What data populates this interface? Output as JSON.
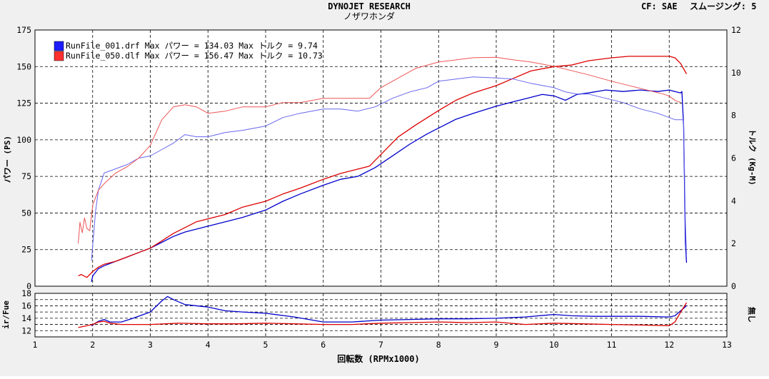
{
  "header": {
    "title": "DYNOJET  RESEARCH",
    "subtitle": "ノザワホンダ",
    "cf_label": "CF: SAE",
    "smoothing_label": "スムージング: 5"
  },
  "chart_data": [
    {
      "type": "line",
      "xlabel": "回転数 (RPMx1000)",
      "ylabel": "パワー (PS)",
      "y2label": "トルク (Kg-M)",
      "xlim": [
        1,
        13
      ],
      "ylim": [
        0,
        175
      ],
      "y2lim": [
        0,
        12
      ],
      "xticks": [
        1,
        2,
        3,
        4,
        5,
        6,
        7,
        8,
        9,
        10,
        11,
        12,
        13
      ],
      "yticks": [
        0,
        25,
        50,
        75,
        100,
        125,
        150,
        175
      ],
      "y2ticks": [
        0,
        2,
        4,
        6,
        8,
        10,
        12
      ],
      "grid": true,
      "legend_position": "top-left",
      "legend": [
        {
          "label": "RunFile_001.drf Max パワー = 134.03   Max トルク = 9.74",
          "color": "#0000ff"
        },
        {
          "label": "RunFile_050.dlf Max パワー = 156.47   Max トルク = 10.73",
          "color": "#ff0000"
        }
      ],
      "series": [
        {
          "name": "RunFile_001.drf パワー",
          "axis": "power",
          "color": "#0000cc",
          "x": [
            1.98,
            2.0,
            2.1,
            2.2,
            2.4,
            2.6,
            2.8,
            3.0,
            3.2,
            3.4,
            3.6,
            3.8,
            4.0,
            4.3,
            4.6,
            5.0,
            5.3,
            5.6,
            6.0,
            6.3,
            6.6,
            6.9,
            7.2,
            7.5,
            7.8,
            8.0,
            8.3,
            8.6,
            9.0,
            9.3,
            9.6,
            9.8,
            10.0,
            10.2,
            10.4,
            10.6,
            10.9,
            11.2,
            11.5,
            11.8,
            12.0,
            12.1,
            12.2,
            12.22,
            12.25,
            12.28,
            12.3
          ],
          "y": [
            3,
            7,
            12,
            14,
            17,
            20,
            23,
            26,
            30,
            34,
            37,
            39,
            41,
            44,
            47,
            52,
            58,
            63,
            69,
            73,
            75,
            81,
            89,
            97,
            104,
            108,
            114,
            118,
            123,
            126,
            129,
            131,
            130,
            127,
            131,
            132,
            134,
            133,
            134,
            133,
            134,
            133,
            132,
            133,
            110,
            30,
            16
          ]
        },
        {
          "name": "RunFile_050.dlf パワー",
          "axis": "power",
          "color": "#dd0000",
          "x": [
            1.75,
            1.8,
            1.9,
            2.0,
            2.1,
            2.2,
            2.4,
            2.6,
            2.8,
            3.0,
            3.2,
            3.4,
            3.6,
            3.8,
            4.0,
            4.3,
            4.6,
            5.0,
            5.3,
            5.6,
            6.0,
            6.3,
            6.6,
            6.8,
            7.0,
            7.3,
            7.6,
            8.0,
            8.3,
            8.6,
            9.0,
            9.3,
            9.6,
            10.0,
            10.3,
            10.6,
            11.0,
            11.3,
            11.6,
            11.9,
            12.0,
            12.1,
            12.2,
            12.3
          ],
          "y": [
            7,
            8,
            6,
            10,
            13,
            15,
            17,
            20,
            23,
            26,
            31,
            36,
            40,
            44,
            46,
            49,
            54,
            58,
            63,
            67,
            73,
            77,
            80,
            82,
            90,
            102,
            110,
            120,
            127,
            132,
            137,
            142,
            147,
            150,
            151,
            154,
            156,
            157,
            157,
            157,
            157,
            156,
            152,
            145
          ]
        },
        {
          "name": "RunFile_001.drf トルク",
          "axis": "torque",
          "color": "#6666ee",
          "x": [
            1.98,
            2.05,
            2.1,
            2.2,
            2.4,
            2.6,
            2.8,
            3.0,
            3.2,
            3.4,
            3.6,
            3.8,
            4.0,
            4.3,
            4.6,
            5.0,
            5.3,
            5.6,
            6.0,
            6.3,
            6.6,
            6.9,
            7.2,
            7.5,
            7.8,
            8.0,
            8.3,
            8.6,
            9.0,
            9.3,
            9.6,
            9.8,
            10.0,
            10.2,
            10.4,
            10.6,
            10.9,
            11.2,
            11.5,
            11.8,
            12.0,
            12.1,
            12.2,
            12.25,
            12.28,
            12.3
          ],
          "y": [
            1.2,
            3.5,
            4.5,
            5.3,
            5.5,
            5.7,
            6.0,
            6.1,
            6.4,
            6.7,
            7.1,
            7.0,
            7.0,
            7.2,
            7.3,
            7.5,
            7.9,
            8.1,
            8.3,
            8.3,
            8.2,
            8.4,
            8.8,
            9.1,
            9.3,
            9.6,
            9.7,
            9.8,
            9.75,
            9.7,
            9.5,
            9.4,
            9.3,
            9.1,
            9.0,
            9.0,
            8.8,
            8.6,
            8.3,
            8.1,
            7.9,
            7.8,
            7.8,
            7.8,
            3.0,
            1.4
          ]
        },
        {
          "name": "RunFile_050.dlf トルク",
          "axis": "torque",
          "color": "#ee5555",
          "x": [
            1.75,
            1.78,
            1.82,
            1.86,
            1.9,
            1.95,
            2.0,
            2.1,
            2.2,
            2.4,
            2.6,
            2.8,
            3.0,
            3.2,
            3.4,
            3.6,
            3.8,
            4.0,
            4.3,
            4.6,
            5.0,
            5.3,
            5.6,
            6.0,
            6.3,
            6.6,
            6.8,
            7.0,
            7.2,
            7.6,
            8.0,
            8.3,
            8.6,
            9.0,
            9.3,
            9.6,
            10.0,
            10.3,
            10.6,
            11.0,
            11.3,
            11.6,
            11.9,
            12.0,
            12.1,
            12.2
          ],
          "y": [
            2.0,
            3.0,
            2.5,
            3.2,
            2.7,
            2.6,
            3.8,
            4.5,
            4.8,
            5.3,
            5.6,
            6.0,
            6.6,
            7.8,
            8.4,
            8.5,
            8.4,
            8.1,
            8.2,
            8.4,
            8.4,
            8.6,
            8.6,
            8.8,
            8.8,
            8.8,
            8.8,
            9.3,
            9.6,
            10.2,
            10.5,
            10.6,
            10.7,
            10.72,
            10.6,
            10.5,
            10.3,
            10.1,
            9.9,
            9.6,
            9.4,
            9.2,
            9.0,
            8.9,
            8.7,
            8.6
          ]
        }
      ]
    },
    {
      "type": "line",
      "ylabel": "ir/Fue",
      "y2label": "無し",
      "xlim": [
        1,
        13
      ],
      "ylim": [
        11,
        18
      ],
      "yticks": [
        12,
        14,
        16,
        18
      ],
      "yticks_minor": [
        13,
        15,
        17
      ],
      "grid": true,
      "series": [
        {
          "name": "RunFile_001.drf ir/Fue",
          "color": "#0000cc",
          "x": [
            1.98,
            2.1,
            2.2,
            2.3,
            2.5,
            2.7,
            3.0,
            3.2,
            3.3,
            3.4,
            3.6,
            4.0,
            4.3,
            4.6,
            5.0,
            5.5,
            6.0,
            6.5,
            7.0,
            7.5,
            8.0,
            8.5,
            9.0,
            9.5,
            10.0,
            10.3,
            10.7,
            11.0,
            11.5,
            12.0,
            12.1,
            12.2,
            12.3
          ],
          "y": [
            12.8,
            13.5,
            13.8,
            13.4,
            13.4,
            14.0,
            15.0,
            16.8,
            17.5,
            17.0,
            16.2,
            15.8,
            15.2,
            15.0,
            14.8,
            14.2,
            13.4,
            13.4,
            13.7,
            13.8,
            13.9,
            13.9,
            14.0,
            14.2,
            14.6,
            14.4,
            14.3,
            14.3,
            14.3,
            14.2,
            14.4,
            15.2,
            16.0
          ]
        },
        {
          "name": "RunFile_050.dlf ir/Fue",
          "color": "#dd0000",
          "x": [
            1.75,
            2.0,
            2.1,
            2.2,
            2.3,
            2.5,
            3.0,
            3.5,
            4.0,
            4.5,
            5.0,
            5.5,
            6.0,
            6.5,
            7.0,
            7.5,
            8.0,
            8.5,
            9.0,
            9.5,
            10.0,
            10.5,
            11.0,
            11.5,
            12.0,
            12.1,
            12.2,
            12.3
          ],
          "y": [
            12.5,
            13.0,
            13.4,
            13.5,
            13.2,
            13.0,
            13.0,
            13.2,
            13.1,
            13.1,
            13.2,
            13.1,
            13.0,
            13.0,
            13.2,
            13.3,
            13.4,
            13.3,
            13.4,
            13.0,
            13.2,
            13.1,
            13.0,
            12.9,
            12.8,
            13.4,
            15.0,
            16.5
          ]
        }
      ]
    }
  ]
}
